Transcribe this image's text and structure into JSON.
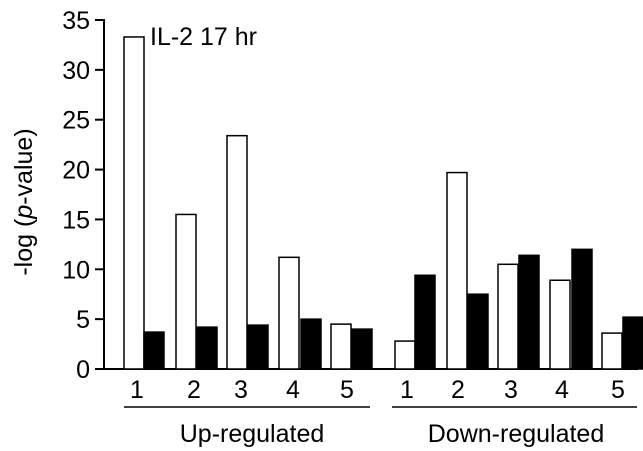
{
  "chart_data": {
    "type": "bar",
    "annotation": "IL-2 17 hr",
    "ylabel": "-log (p-value)",
    "ylabel_parts": {
      "before": "-log (",
      "italic": "p",
      "after": "-value)"
    },
    "ylim": [
      0,
      35
    ],
    "yticks": [
      0,
      5,
      10,
      15,
      20,
      25,
      30,
      35
    ],
    "grid": false,
    "legend": "none",
    "groups": [
      {
        "label": "Up-regulated",
        "categories": [
          "1",
          "2",
          "3",
          "4",
          "5"
        ],
        "series": [
          {
            "values": [
              33.3,
              15.5,
              23.4,
              11.2,
              4.5
            ],
            "fill": "#ffffff"
          },
          {
            "values": [
              3.7,
              4.2,
              4.4,
              5.0,
              4.0
            ],
            "fill": "#000000"
          }
        ]
      },
      {
        "label": "Down-regulated",
        "categories": [
          "1",
          "2",
          "3",
          "4",
          "5"
        ],
        "series": [
          {
            "values": [
              2.8,
              19.7,
              10.5,
              8.9,
              3.6
            ],
            "fill": "#ffffff"
          },
          {
            "values": [
              9.4,
              7.5,
              11.4,
              12.0,
              5.2
            ],
            "fill": "#000000"
          }
        ]
      }
    ]
  }
}
